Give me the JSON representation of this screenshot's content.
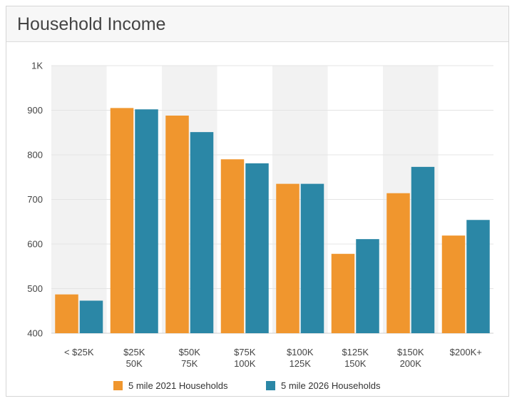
{
  "panel": {
    "title": "Household Income"
  },
  "chart_data": {
    "type": "bar",
    "title": "",
    "xlabel": "",
    "ylabel": "",
    "categories": [
      [
        "< $25K"
      ],
      [
        "$25K",
        "50K"
      ],
      [
        "$50K",
        "75K"
      ],
      [
        "$75K",
        "100K"
      ],
      [
        "$100K",
        "125K"
      ],
      [
        "$125K",
        "150K"
      ],
      [
        "$150K",
        "200K"
      ],
      [
        "$200K+"
      ]
    ],
    "series": [
      {
        "name": "5 mile 2021 Households",
        "color": "#f0962e",
        "values": [
          487,
          905,
          888,
          790,
          735,
          578,
          714,
          619
        ]
      },
      {
        "name": "5 mile 2026 Households",
        "color": "#2b87a6",
        "values": [
          473,
          902,
          851,
          781,
          735,
          611,
          773,
          654
        ]
      }
    ],
    "ylim": [
      400,
      1000
    ],
    "yticks": [
      {
        "value": 400,
        "label": "400"
      },
      {
        "value": 500,
        "label": "500"
      },
      {
        "value": 600,
        "label": "600"
      },
      {
        "value": 700,
        "label": "700"
      },
      {
        "value": 800,
        "label": "800"
      },
      {
        "value": 900,
        "label": "900"
      },
      {
        "value": 1000,
        "label": "1K"
      }
    ],
    "grid": true,
    "alternating_band_color": "#f2f2f2",
    "legend_position": "bottom"
  }
}
